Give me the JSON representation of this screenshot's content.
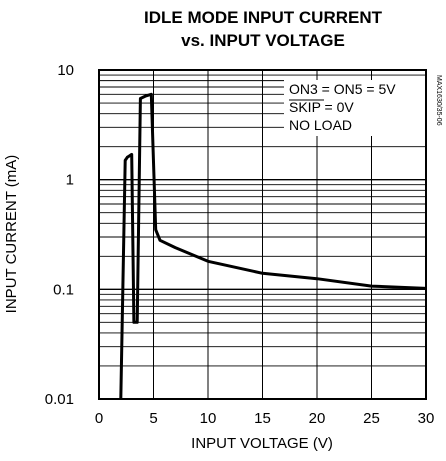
{
  "chart_data": {
    "type": "line",
    "title": "IDLE MODE INPUT CURRENT",
    "subtitle": "vs. INPUT VOLTAGE",
    "xlabel": "INPUT VOLTAGE (V)",
    "ylabel": "INPUT CURRENT (mA)",
    "xlim": [
      0,
      30
    ],
    "ylim": [
      0.01,
      10
    ],
    "yscale": "log",
    "xticks": [
      "0",
      "5",
      "10",
      "15",
      "20",
      "25",
      "30"
    ],
    "yticks": [
      "0.01",
      "0.1",
      "1",
      "10"
    ],
    "grid": true,
    "annotations": [
      "ON3 = ON5 = 5V",
      "SKIP = 0V",
      "NO LOAD"
    ],
    "side_label": "MAX1630/35-06",
    "series": [
      {
        "x": [
          2.0,
          2.4,
          2.6,
          3.0,
          3.2,
          3.5,
          3.8,
          4.3,
          4.8,
          5.2,
          5.6,
          7.0,
          10.0,
          15.0,
          20.0,
          25.0,
          30.0
        ],
        "y": [
          0.01,
          1.5,
          1.6,
          1.7,
          0.05,
          0.05,
          5.5,
          5.8,
          6.0,
          0.35,
          0.28,
          0.24,
          0.18,
          0.14,
          0.125,
          0.107,
          0.102
        ]
      }
    ]
  }
}
